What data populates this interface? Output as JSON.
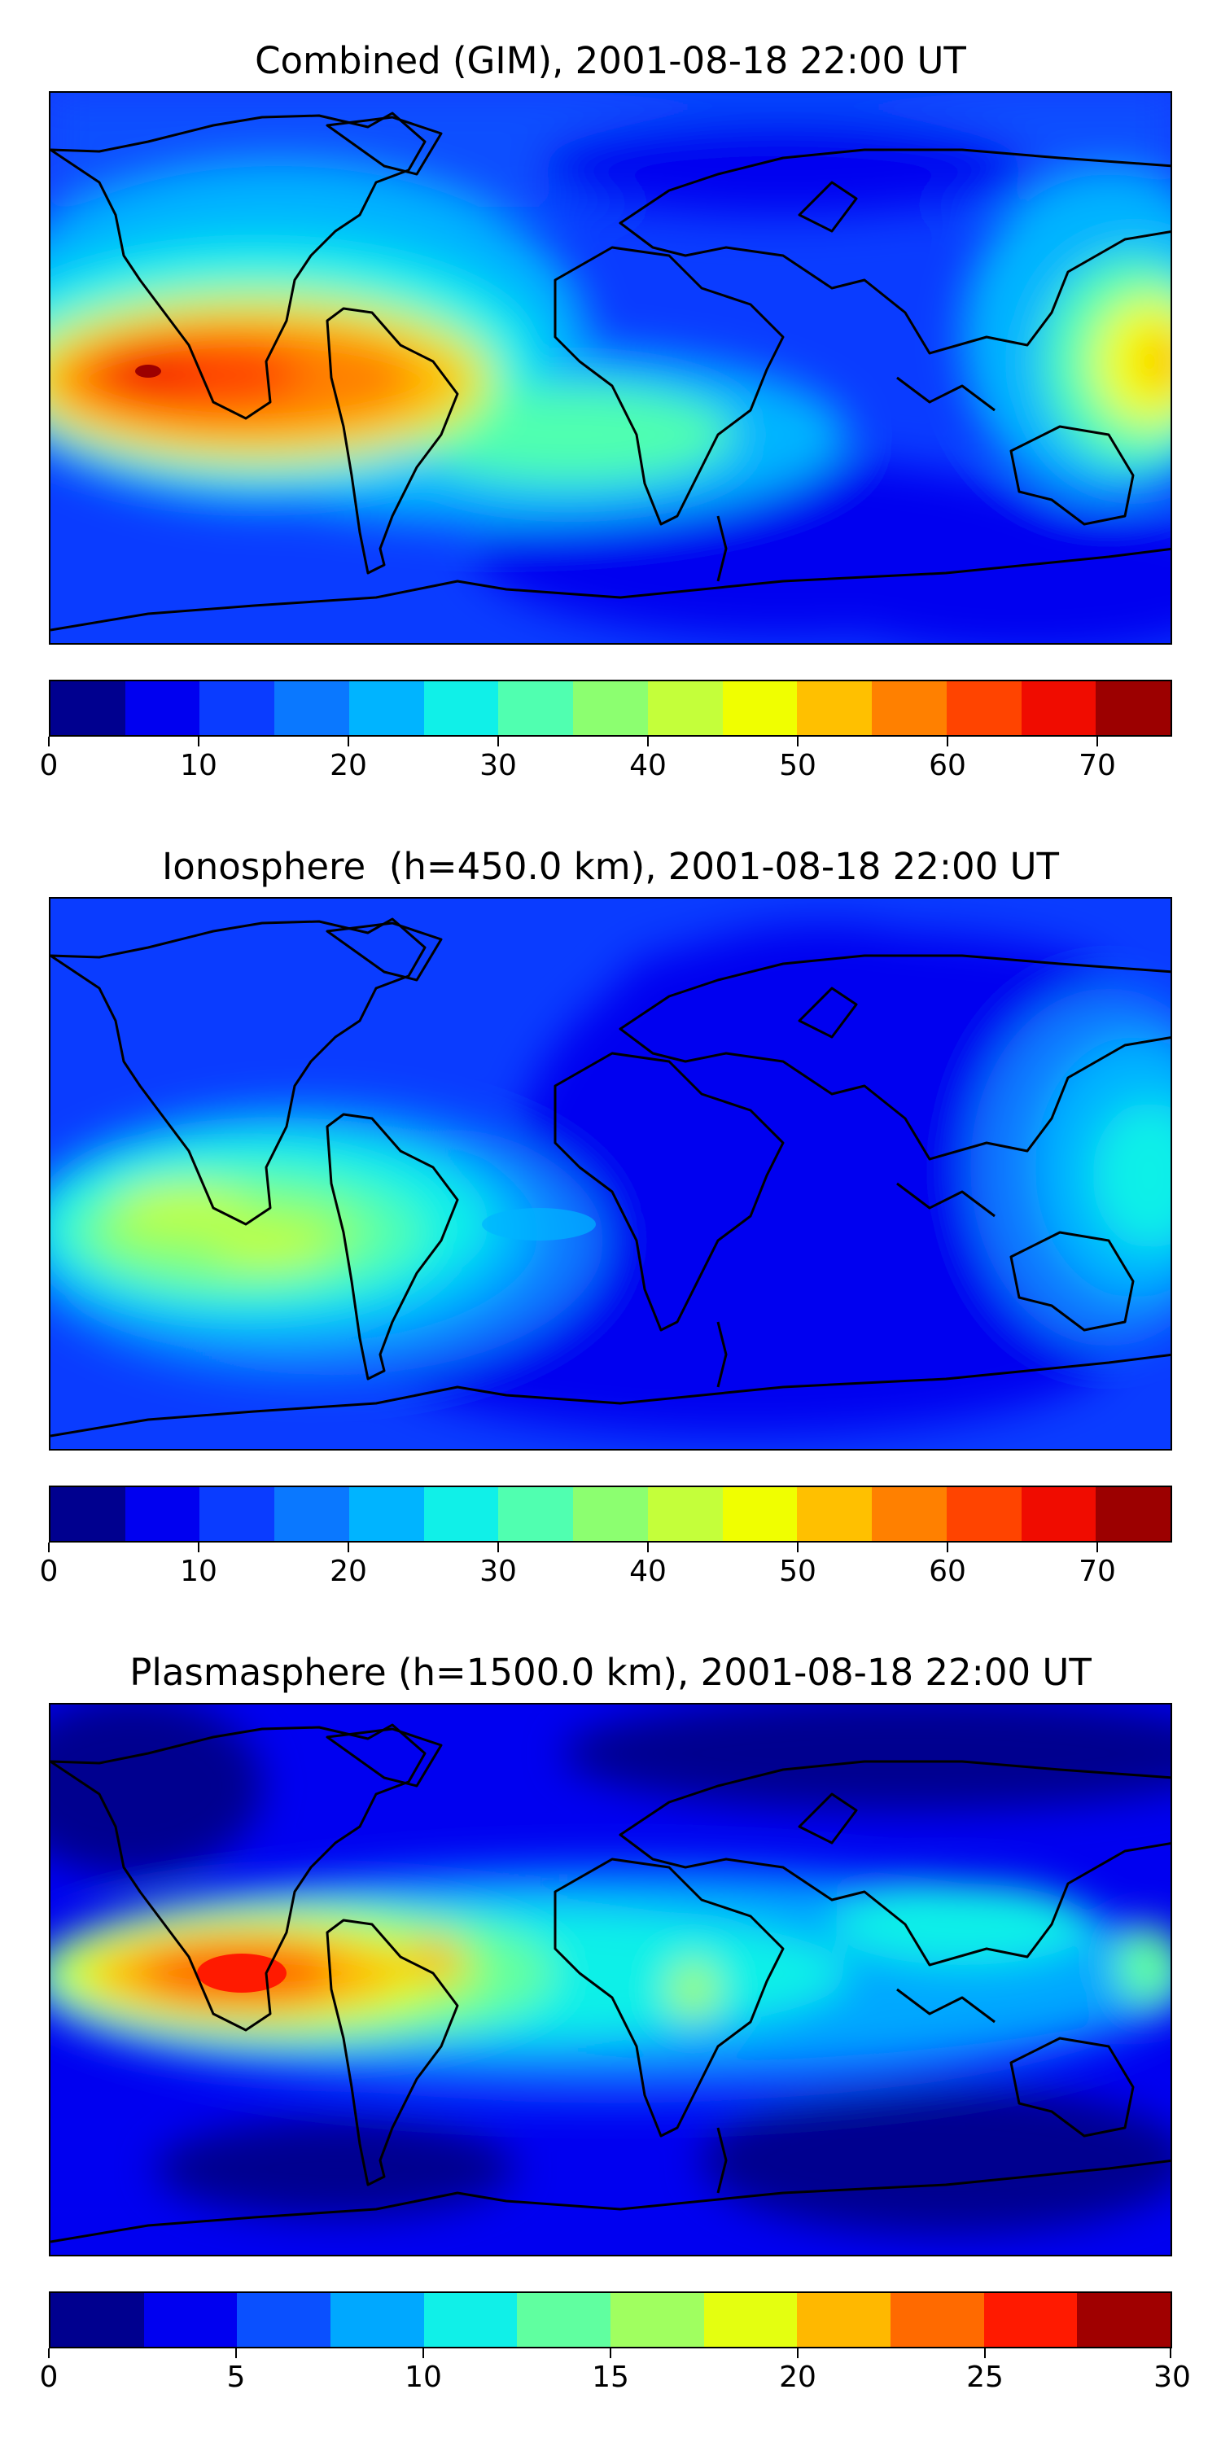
{
  "panels": [
    {
      "title": "Combined (GIM), 2001-08-18 22:00 UT",
      "colorbar": {
        "vmin": 0,
        "vmax": 75,
        "step": 5,
        "ticks": [
          "0",
          "10",
          "20",
          "30",
          "40",
          "50",
          "60",
          "70"
        ],
        "tick_values": [
          0,
          10,
          20,
          30,
          40,
          50,
          60,
          70
        ]
      }
    },
    {
      "title": "Ionosphere  (h=450.0 km), 2001-08-18 22:00 UT",
      "colorbar": {
        "vmin": 0,
        "vmax": 75,
        "step": 5,
        "ticks": [
          "0",
          "10",
          "20",
          "30",
          "40",
          "50",
          "60",
          "70"
        ],
        "tick_values": [
          0,
          10,
          20,
          30,
          40,
          50,
          60,
          70
        ]
      }
    },
    {
      "title": "Plasmasphere (h=1500.0 km), 2001-08-18 22:00 UT",
      "colorbar": {
        "vmin": 0,
        "vmax": 30,
        "step": 2.5,
        "ticks": [
          "0",
          "5",
          "10",
          "15",
          "20",
          "25",
          "30"
        ],
        "tick_values": [
          0,
          5,
          10,
          15,
          20,
          25,
          30
        ]
      }
    }
  ],
  "colors": {
    "jet_levels": [
      "#00008f",
      "#0000f0",
      "#0a3cff",
      "#0a78ff",
      "#00b4ff",
      "#10f0e8",
      "#50ffb0",
      "#8cff70",
      "#c4ff3a",
      "#f0ff00",
      "#ffc000",
      "#ff8000",
      "#ff4400",
      "#f00c00",
      "#9c0000"
    ],
    "jet_levels_12": [
      "#00008f",
      "#0000f0",
      "#0a50ff",
      "#00a8ff",
      "#10f0e8",
      "#60ffa0",
      "#a0ff60",
      "#e4ff10",
      "#ffb800",
      "#ff6a00",
      "#ff1a00",
      "#a00000"
    ],
    "coastline": "#000000"
  }
}
